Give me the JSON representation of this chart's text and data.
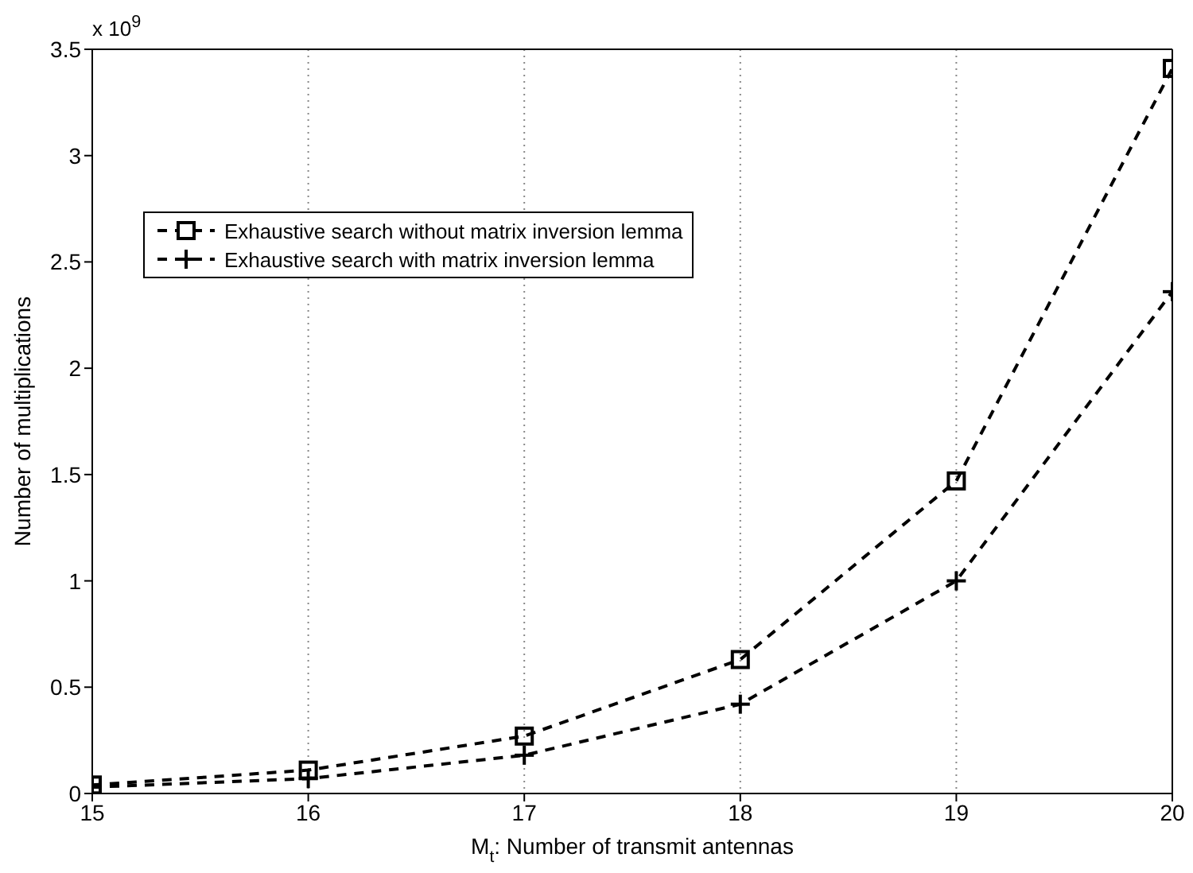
{
  "chart_data": {
    "type": "line",
    "xlabel": "M$_{t}$: Number of transmit antennas",
    "ylabel": "Number of multiplications",
    "annotations": [
      "x 10$^{9}$"
    ],
    "x": [
      15,
      16,
      17,
      18,
      19,
      20
    ],
    "series": [
      {
        "name": "Exhaustive search without matrix inversion lemma",
        "color": "#000000",
        "marker": "square",
        "values": [
          0.04,
          0.11,
          0.27,
          0.63,
          1.47,
          3.41
        ]
      },
      {
        "name": "Exhaustive search with matrix inversion lemma",
        "color": "#000000",
        "marker": "cross",
        "values": [
          0.03,
          0.07,
          0.18,
          0.42,
          1.0,
          2.36
        ]
      }
    ],
    "xlim": [
      15,
      20
    ],
    "xticks": [
      15,
      16,
      17,
      18,
      19,
      20
    ],
    "ylim": [
      0,
      3.5
    ],
    "yticks": [
      0,
      0.5,
      1,
      1.5,
      2,
      2.5,
      3,
      3.5
    ],
    "grid": true,
    "legend": "top left",
    "line_style": "dashed"
  }
}
